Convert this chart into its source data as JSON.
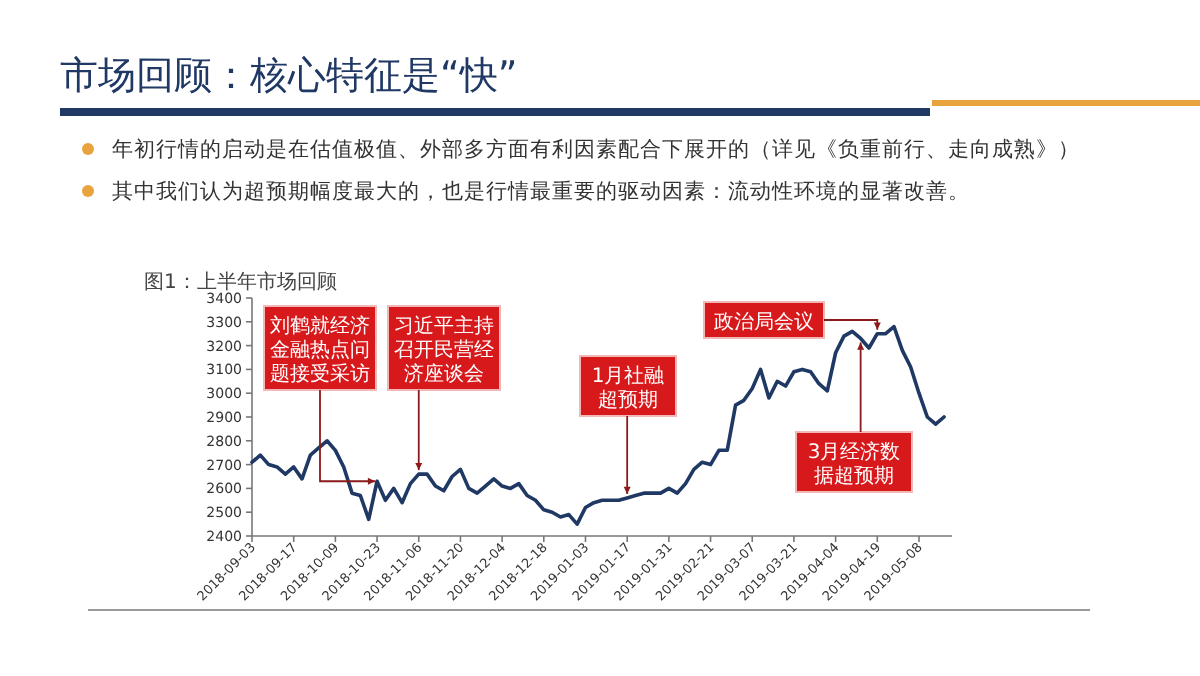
{
  "chart_data": {
    "type": "line",
    "title": "市场回顾：核心特征是“快”",
    "subtitle": "图1：上半年市场回顾",
    "annotations": [
      "年初行情的启动是在估值极值、外部多方面有利因素配合下展开的（详见《负重前行、走向成熟》）",
      "其中我们认为超预期幅度最大的，也是行情最重要的驱动因素：流动性环境的显著改善。",
      {
        "text": "刘鹤就经济金融热点问题接受采访",
        "x": "2018-10-23",
        "y": 2630
      },
      {
        "text": "习近平主持召开民营经济座谈会",
        "x": "2018-11-06",
        "y": 2660
      },
      {
        "text": "1月社融超预期",
        "x": "2019-01-17",
        "y": 2560
      },
      {
        "text": "政治局会议",
        "x": "2019-04-19",
        "y": 3250
      },
      {
        "text": "3月经济数据超预期",
        "y": 3230
      }
    ],
    "categories": [
      "2018-09-03",
      null,
      null,
      null,
      null,
      "2018-09-17",
      null,
      null,
      null,
      null,
      "2018-10-09",
      null,
      null,
      null,
      null,
      "2018-10-23",
      null,
      null,
      null,
      null,
      "2018-11-06",
      null,
      null,
      null,
      null,
      "2018-11-20",
      null,
      null,
      null,
      null,
      "2018-12-04",
      null,
      null,
      null,
      null,
      "2018-12-18",
      null,
      null,
      null,
      null,
      "2019-01-03",
      null,
      null,
      null,
      null,
      "2019-01-17",
      null,
      null,
      null,
      null,
      "2019-01-31",
      null,
      null,
      null,
      null,
      "2019-02-21",
      null,
      null,
      null,
      null,
      "2019-03-07",
      null,
      null,
      null,
      null,
      "2019-03-21",
      null,
      null,
      null,
      null,
      "2019-04-04",
      null,
      null,
      null,
      null,
      "2019-04-19",
      null,
      null,
      null,
      null,
      "2019-05-08",
      null,
      null,
      null
    ],
    "series": [
      {
        "color": "#1f3864",
        "values": [
          2710,
          2740,
          2700,
          2690,
          2660,
          2690,
          2640,
          2740,
          2770,
          2800,
          2760,
          2690,
          2580,
          2570,
          2470,
          2630,
          2550,
          2600,
          2540,
          2620,
          2660,
          2660,
          2610,
          2590,
          2650,
          2680,
          2600,
          2580,
          2610,
          2640,
          2610,
          2600,
          2620,
          2570,
          2550,
          2510,
          2500,
          2480,
          2490,
          2450,
          2520,
          2540,
          2550,
          2550,
          2550,
          2560,
          2570,
          2580,
          2580,
          2580,
          2600,
          2580,
          2620,
          2680,
          2710,
          2700,
          2760,
          2760,
          2950,
          2970,
          3020,
          3100,
          2980,
          3050,
          3030,
          3090,
          3100,
          3090,
          3040,
          3010,
          3170,
          3240,
          3260,
          3230,
          3190,
          3250,
          3250,
          3280,
          3180,
          3110,
          3000,
          2900,
          2870,
          2900
        ]
      }
    ],
    "ylim": [
      2400,
      3400
    ],
    "yticks": [
      2400,
      2500,
      2600,
      2700,
      2800,
      2900,
      3000,
      3100,
      3200,
      3300,
      3400
    ],
    "grid": false,
    "marker": "none",
    "line_style": "solid"
  }
}
